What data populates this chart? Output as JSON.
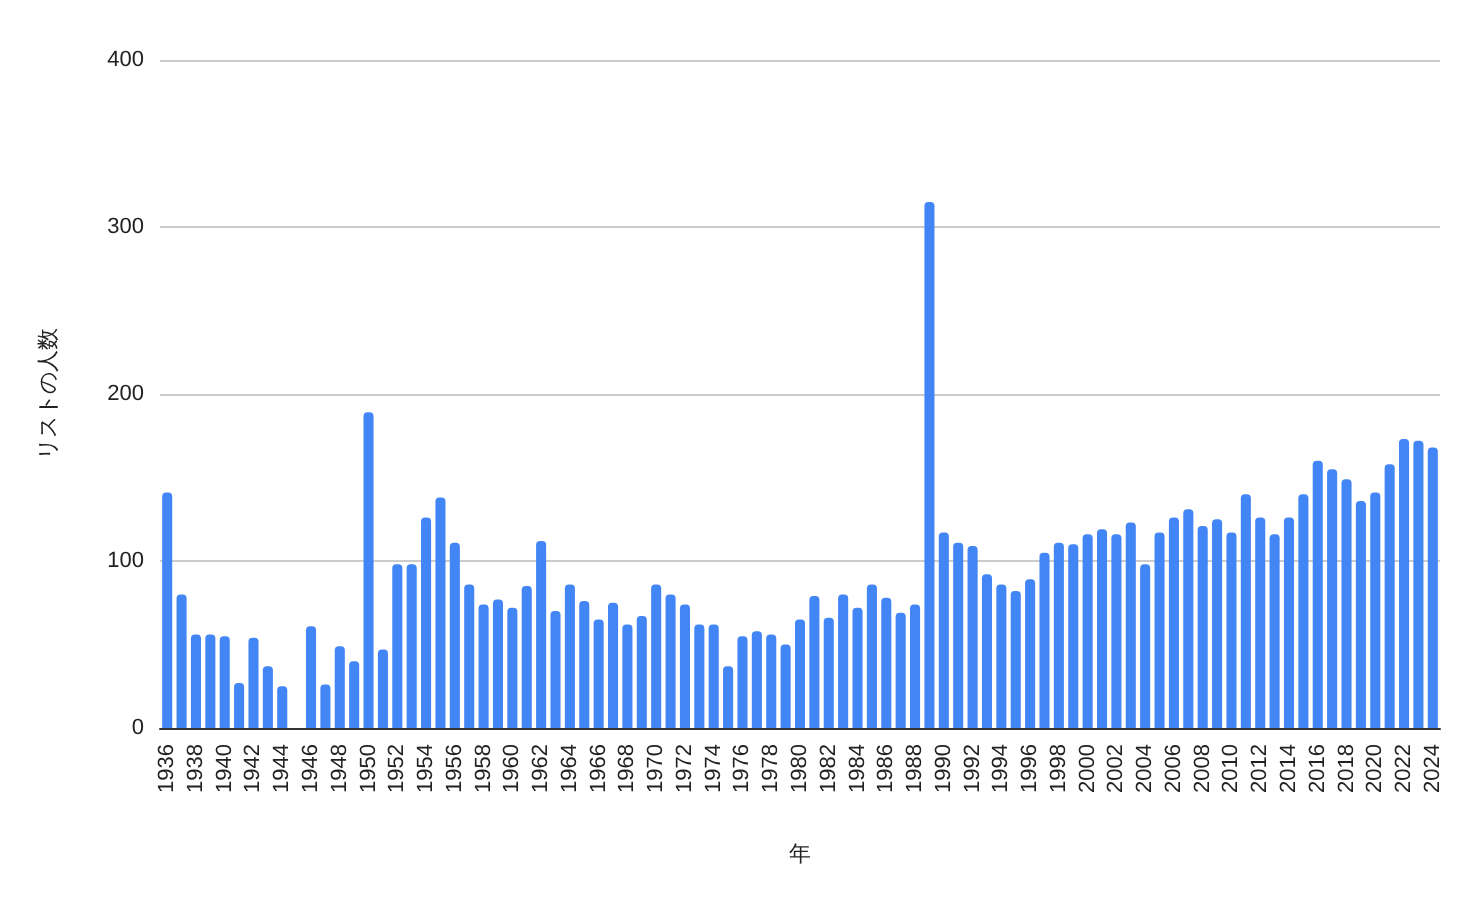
{
  "chart_data": {
    "type": "bar",
    "xlabel": "年",
    "ylabel": "リストの人数",
    "categories": [
      "1936",
      null,
      "1938",
      null,
      "1940",
      null,
      "1942",
      null,
      "1944",
      null,
      "1946",
      null,
      "1948",
      null,
      "1950",
      null,
      "1952",
      null,
      "1954",
      null,
      "1956",
      null,
      "1958",
      null,
      "1960",
      null,
      "1962",
      null,
      "1964",
      null,
      "1966",
      null,
      "1968",
      null,
      "1970",
      null,
      "1972",
      null,
      "1974",
      null,
      "1976",
      null,
      "1978",
      null,
      "1980",
      null,
      "1982",
      null,
      "1984",
      null,
      "1986",
      null,
      "1988",
      null,
      "1990",
      null,
      "1992",
      null,
      "1994",
      null,
      "1996",
      null,
      "1998",
      null,
      "2000",
      null,
      "2002",
      null,
      "2004",
      null,
      "2006",
      null,
      "2008",
      null,
      "2010",
      null,
      "2012",
      null,
      "2014",
      null,
      "2016",
      null,
      "2018",
      null,
      "2020",
      null,
      "2022",
      null,
      "2024"
    ],
    "values": [
      141,
      80,
      56,
      56,
      55,
      27,
      54,
      37,
      25,
      null,
      61,
      26,
      49,
      40,
      189,
      47,
      98,
      98,
      126,
      138,
      111,
      86,
      74,
      77,
      72,
      85,
      112,
      70,
      86,
      76,
      65,
      75,
      62,
      67,
      86,
      80,
      74,
      62,
      62,
      37,
      55,
      58,
      56,
      50,
      65,
      79,
      66,
      80,
      72,
      86,
      78,
      69,
      74,
      315,
      117,
      111,
      109,
      92,
      86,
      82,
      89,
      105,
      111,
      110,
      116,
      119,
      116,
      123,
      98,
      117,
      126,
      131,
      121,
      125,
      117,
      140,
      126,
      116,
      126,
      140,
      160,
      155,
      149,
      136,
      141,
      158,
      173,
      172,
      168
    ],
    "color": "#4285f4",
    "ylim": [
      0,
      400
    ],
    "yticks": [
      0,
      100,
      200,
      300,
      400
    ],
    "grid": "y"
  }
}
